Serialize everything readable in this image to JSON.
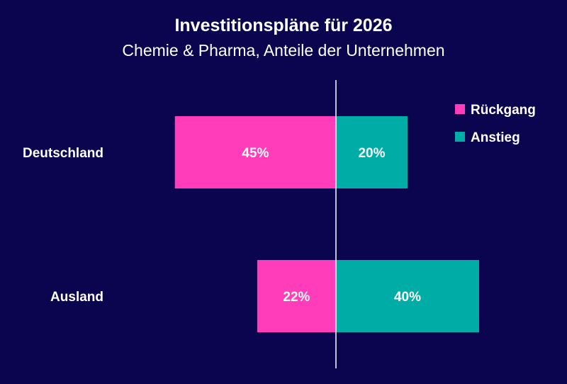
{
  "chart_data": {
    "type": "bar",
    "orientation": "horizontal",
    "stacked": "diverging",
    "title": "Investitionspläne für 2026",
    "subtitle": "Chemie & Pharma, Anteile der Unternehmen",
    "categories": [
      "Deutschland",
      "Ausland"
    ],
    "series": [
      {
        "name": "Rückgang",
        "values": [
          45,
          22
        ],
        "labels": [
          "45%",
          "22%"
        ],
        "color": "#ff3dbb",
        "direction": "left"
      },
      {
        "name": "Anstieg",
        "values": [
          20,
          40
        ],
        "labels": [
          "20%",
          "40%"
        ],
        "color": "#00aca6",
        "direction": "right"
      }
    ],
    "unit": "%",
    "legend_position": "top-right",
    "grid": false
  },
  "colors": {
    "background": "#0b0550",
    "text": "#ffffff",
    "axis": "#ffffff"
  }
}
